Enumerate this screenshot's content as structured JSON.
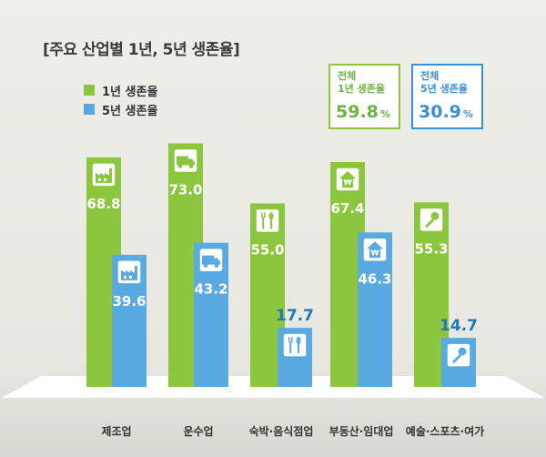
{
  "chart_data": {
    "type": "bar",
    "title": "[주요 산업별 1년, 5년 생존율]",
    "categories": [
      "제조업",
      "운수업",
      "숙박·음식점업",
      "부동산·임대업",
      "예술·스포츠·여가"
    ],
    "series": [
      {
        "name": "1년 생존율",
        "values": [
          68.8,
          73.0,
          55.0,
          67.4,
          55.3
        ],
        "color": "#8cc63f"
      },
      {
        "name": "5년 생존율",
        "values": [
          39.6,
          43.2,
          17.7,
          46.3,
          14.7
        ],
        "color": "#5aaae2"
      }
    ],
    "value_labels": {
      "s1": [
        "68.8",
        "73.0",
        "55.0",
        "67.4",
        "55.3"
      ],
      "s2": [
        "39.6",
        "43.2",
        "17.7",
        "46.3",
        "14.7"
      ]
    },
    "category_icons": [
      "factory-icon",
      "truck-icon",
      "utensils-icon",
      "house-won-icon",
      "microphone-icon"
    ],
    "ylim": [
      0,
      80
    ],
    "legend_position": "top-left"
  },
  "summary": {
    "one_year": {
      "label": "전체\n1년 생존율",
      "value": "59.8",
      "unit": "%",
      "color": "#6db33f"
    },
    "five_year": {
      "label": "전체\n5년 생존율",
      "value": "30.9",
      "unit": "%",
      "color": "#3a8fd6"
    }
  },
  "colors": {
    "label_on_bar": "#ffffff",
    "label_above": "#1d77b8"
  }
}
